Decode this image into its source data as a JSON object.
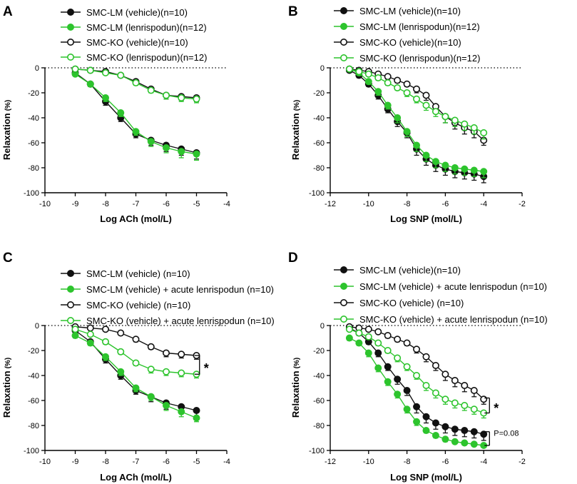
{
  "colors": {
    "black": "#111111",
    "green": "#2dc42d"
  },
  "chart_data": [
    {
      "id": "A",
      "type": "line",
      "letter": "A",
      "xlabel": "Log ACh (mol/L)",
      "ylabel": "Relaxation",
      "ylabel_unit": "(%)",
      "xlim": [
        -10,
        -4
      ],
      "ylim": [
        -100,
        0
      ],
      "xticks": [
        -10,
        -9,
        -8,
        -7,
        -6,
        -5,
        -4
      ],
      "xtick_labels": [
        "-10",
        "-9",
        "-8",
        "-7",
        "-6",
        "-5",
        "-4"
      ],
      "yticks": [
        0,
        -20,
        -40,
        -60,
        -80,
        -100
      ],
      "ytick_labels": [
        "0",
        "-20",
        "-40",
        "-60",
        "-80",
        "-100"
      ],
      "series": [
        {
          "name": "SMC-LM (vehicle)(n=10)",
          "color": "black",
          "filled": true,
          "x": [
            -9,
            -8.5,
            -8,
            -7.5,
            -7,
            -6.5,
            -6,
            -5.5,
            -5
          ],
          "y": [
            -4,
            -13,
            -27,
            -40,
            -53,
            -58,
            -62,
            -65,
            -68
          ],
          "err": [
            1,
            2,
            3,
            3,
            3,
            4,
            5,
            5,
            5
          ]
        },
        {
          "name": "SMC-LM (lenrispodun)(n=12)",
          "color": "green",
          "filled": true,
          "x": [
            -9,
            -8.5,
            -8,
            -7.5,
            -7,
            -6.5,
            -6,
            -5.5,
            -5
          ],
          "y": [
            -5,
            -13,
            -24,
            -36,
            -51,
            -59,
            -64,
            -67,
            -69
          ],
          "err": [
            1,
            2,
            3,
            3,
            3,
            4,
            4,
            5,
            5
          ]
        },
        {
          "name": "SMC-KO (vehicle)(n=10)",
          "color": "black",
          "filled": false,
          "x": [
            -9,
            -8.5,
            -8,
            -7.5,
            -7,
            -6.5,
            -6,
            -5.5,
            -5
          ],
          "y": [
            -1,
            -2,
            -3,
            -6,
            -11,
            -17,
            -22,
            -23,
            -24
          ],
          "err": [
            1,
            1,
            1,
            1,
            2,
            2,
            3,
            3,
            3
          ]
        },
        {
          "name": "SMC-KO (lenrispodun)(n=12)",
          "color": "green",
          "filled": false,
          "x": [
            -9,
            -8.5,
            -8,
            -7.5,
            -7,
            -6.5,
            -6,
            -5.5,
            -5
          ],
          "y": [
            -1,
            -2,
            -4,
            -6,
            -12,
            -18,
            -22,
            -24,
            -25
          ],
          "err": [
            1,
            1,
            1,
            1,
            2,
            2,
            3,
            3,
            3
          ]
        }
      ]
    },
    {
      "id": "B",
      "type": "line",
      "letter": "B",
      "xlabel": "Log SNP (mol/L)",
      "ylabel": "Relaxation",
      "ylabel_unit": "(%)",
      "xlim": [
        -12,
        -2
      ],
      "ylim": [
        -100,
        0
      ],
      "xticks": [
        -12,
        -10,
        -8,
        -6,
        -4,
        -2
      ],
      "xtick_labels": [
        "-12",
        "-10",
        "-8",
        "-6",
        "-4",
        "-2"
      ],
      "yticks": [
        0,
        -20,
        -40,
        -60,
        -80,
        -100
      ],
      "ytick_labels": [
        "0",
        "-20",
        "-40",
        "-60",
        "-80",
        "-100"
      ],
      "series": [
        {
          "name": "SMC-LM (vehicle)(n=10)",
          "color": "black",
          "filled": true,
          "x": [
            -11,
            -10.5,
            -10,
            -9.5,
            -9,
            -8.5,
            -8,
            -7.5,
            -7,
            -6.5,
            -6,
            -5.5,
            -5,
            -4.5,
            -4
          ],
          "y": [
            -2,
            -6,
            -13,
            -22,
            -33,
            -43,
            -52,
            -65,
            -73,
            -78,
            -81,
            -83,
            -84,
            -85,
            -87
          ],
          "err": [
            1,
            2,
            2,
            3,
            3,
            4,
            4,
            5,
            5,
            5,
            5,
            5,
            5,
            5,
            5
          ]
        },
        {
          "name": "SMC-LM (lenrispodun)(n=12)",
          "color": "green",
          "filled": true,
          "x": [
            -11,
            -10.5,
            -10,
            -9.5,
            -9,
            -8.5,
            -8,
            -7.5,
            -7,
            -6.5,
            -6,
            -5.5,
            -5,
            -4.5,
            -4
          ],
          "y": [
            -1,
            -4,
            -11,
            -19,
            -30,
            -40,
            -51,
            -62,
            -70,
            -75,
            -78,
            -80,
            -81,
            -82,
            -83
          ],
          "err": [
            1,
            2,
            2,
            3,
            3,
            4,
            4,
            5,
            5,
            5,
            5,
            5,
            5,
            5,
            5
          ]
        },
        {
          "name": "SMC-KO (vehicle)(n=10)",
          "color": "black",
          "filled": false,
          "x": [
            -11,
            -10.5,
            -10,
            -9.5,
            -9,
            -8.5,
            -8,
            -7.5,
            -7,
            -6.5,
            -6,
            -5.5,
            -5,
            -4.5,
            -4
          ],
          "y": [
            -1,
            -2,
            -3,
            -5,
            -7,
            -10,
            -13,
            -17,
            -22,
            -31,
            -39,
            -44,
            -48,
            -51,
            -58
          ],
          "err": [
            1,
            1,
            1,
            1,
            2,
            2,
            2,
            3,
            4,
            4,
            5,
            5,
            5,
            5,
            4
          ]
        },
        {
          "name": "SMC-KO (lenrispodun)(n=12)",
          "color": "green",
          "filled": false,
          "x": [
            -11,
            -10.5,
            -10,
            -9.5,
            -9,
            -8.5,
            -8,
            -7.5,
            -7,
            -6.5,
            -6,
            -5.5,
            -5,
            -4.5,
            -4
          ],
          "y": [
            -1,
            -3,
            -5,
            -8,
            -12,
            -16,
            -20,
            -25,
            -30,
            -35,
            -39,
            -42,
            -45,
            -48,
            -52
          ],
          "err": [
            1,
            1,
            1,
            2,
            2,
            2,
            3,
            3,
            4,
            4,
            5,
            5,
            5,
            5,
            5
          ]
        }
      ]
    },
    {
      "id": "C",
      "type": "line",
      "letter": "C",
      "xlabel": "Log ACh (mol/L)",
      "ylabel": "Relaxation",
      "ylabel_unit": "(%)",
      "xlim": [
        -10,
        -4
      ],
      "ylim": [
        -100,
        0
      ],
      "xticks": [
        -10,
        -9,
        -8,
        -7,
        -6,
        -5,
        -4
      ],
      "xtick_labels": [
        "-10",
        "-9",
        "-8",
        "-7",
        "-6",
        "-5",
        "-4"
      ],
      "yticks": [
        0,
        -20,
        -40,
        -60,
        -80,
        -100
      ],
      "ytick_labels": [
        "0",
        "-20",
        "-40",
        "-60",
        "-80",
        "-100"
      ],
      "annotations": [
        {
          "text": "*",
          "x": -4.9,
          "y": -32
        }
      ],
      "brackets": [
        {
          "x": -4.9,
          "y1": -24,
          "y2": -39
        }
      ],
      "series": [
        {
          "name": "SMC-LM (vehicle) (n=10)",
          "color": "black",
          "filled": true,
          "x": [
            -9,
            -8.5,
            -8,
            -7.5,
            -7,
            -6.5,
            -6,
            -5.5,
            -5
          ],
          "y": [
            -4,
            -13,
            -27,
            -40,
            -52,
            -57,
            -62,
            -65,
            -68
          ],
          "err": [
            1,
            2,
            3,
            3,
            3,
            4,
            5,
            5,
            5
          ]
        },
        {
          "name": "SMC-LM (vehicle) + acute lenrispodun (n=10)",
          "color": "green",
          "filled": true,
          "x": [
            -9,
            -8.5,
            -8,
            -7.5,
            -7,
            -6.5,
            -6,
            -5.5,
            -5
          ],
          "y": [
            -8,
            -14,
            -25,
            -37,
            -50,
            -57,
            -64,
            -69,
            -74
          ],
          "err": [
            2,
            2,
            3,
            3,
            3,
            3,
            4,
            4,
            3
          ]
        },
        {
          "name": "SMC-KO (vehicle) (n=10)",
          "color": "black",
          "filled": false,
          "x": [
            -9,
            -8.5,
            -8,
            -7.5,
            -7,
            -6.5,
            -6,
            -5.5,
            -5
          ],
          "y": [
            -1,
            -2,
            -3,
            -6,
            -11,
            -17,
            -22,
            -23,
            -24
          ],
          "err": [
            1,
            1,
            1,
            1,
            2,
            2,
            3,
            3,
            3
          ]
        },
        {
          "name": "SMC-KO (vehicle) + acute lenrispodun (n=10)",
          "color": "green",
          "filled": false,
          "x": [
            -9,
            -8.5,
            -8,
            -7.5,
            -7,
            -6.5,
            -6,
            -5.5,
            -5
          ],
          "y": [
            -3,
            -7,
            -13,
            -21,
            -30,
            -35,
            -37,
            -38,
            -39
          ],
          "err": [
            1,
            1,
            2,
            2,
            2,
            3,
            3,
            3,
            3
          ]
        }
      ]
    },
    {
      "id": "D",
      "type": "line",
      "letter": "D",
      "xlabel": "Log SNP (mol/L)",
      "ylabel": "Relaxation",
      "ylabel_unit": "(%)",
      "xlim": [
        -12,
        -2
      ],
      "ylim": [
        -100,
        0
      ],
      "xticks": [
        -12,
        -10,
        -8,
        -6,
        -4,
        -2
      ],
      "xtick_labels": [
        "-12",
        "-10",
        "-8",
        "-6",
        "-4",
        "-2"
      ],
      "yticks": [
        0,
        -20,
        -40,
        -60,
        -80,
        -100
      ],
      "ytick_labels": [
        "0",
        "-20",
        "-40",
        "-60",
        "-80",
        "-100"
      ],
      "annotations": [
        {
          "text": "*",
          "x": -3.7,
          "y": -64
        },
        {
          "text": "P=0.08",
          "x": -3.7,
          "y": -86
        }
      ],
      "brackets": [
        {
          "x": -3.7,
          "y1": -58,
          "y2": -70
        },
        {
          "x": -3.7,
          "y1": -85,
          "y2": -96
        }
      ],
      "series": [
        {
          "name": "SMC-LM (vehicle)(n=10)",
          "color": "black",
          "filled": true,
          "x": [
            -11,
            -10.5,
            -10,
            -9.5,
            -9,
            -8.5,
            -8,
            -7.5,
            -7,
            -6.5,
            -6,
            -5.5,
            -5,
            -4.5,
            -4
          ],
          "y": [
            -2,
            -6,
            -13,
            -22,
            -33,
            -43,
            -52,
            -65,
            -73,
            -78,
            -81,
            -83,
            -84,
            -85,
            -87
          ],
          "err": [
            1,
            2,
            2,
            3,
            3,
            4,
            4,
            5,
            5,
            5,
            5,
            5,
            5,
            5,
            5
          ]
        },
        {
          "name": "SMC-LM (vehicle) + acute lenrispodun (n=10)",
          "color": "green",
          "filled": true,
          "x": [
            -11,
            -10.5,
            -10,
            -9.5,
            -9,
            -8.5,
            -8,
            -7.5,
            -7,
            -6.5,
            -6,
            -5.5,
            -5,
            -4.5,
            -4
          ],
          "y": [
            -10,
            -14,
            -22,
            -34,
            -45,
            -55,
            -67,
            -77,
            -84,
            -88,
            -91,
            -93,
            -94,
            -95,
            -96
          ],
          "err": [
            2,
            2,
            3,
            3,
            3,
            3,
            3,
            3,
            2,
            2,
            2,
            1,
            1,
            1,
            1
          ]
        },
        {
          "name": "SMC-KO (vehicle) (n=10)",
          "color": "black",
          "filled": false,
          "x": [
            -11,
            -10.5,
            -10,
            -9.5,
            -9,
            -8.5,
            -8,
            -7.5,
            -7,
            -6.5,
            -6,
            -5.5,
            -5,
            -4.5,
            -4
          ],
          "y": [
            -1,
            -2,
            -3,
            -5,
            -8,
            -11,
            -14,
            -19,
            -25,
            -32,
            -39,
            -44,
            -48,
            -52,
            -59
          ],
          "err": [
            1,
            1,
            1,
            1,
            2,
            2,
            2,
            3,
            4,
            4,
            5,
            5,
            5,
            5,
            4
          ]
        },
        {
          "name": "SMC-KO (vehicle) + acute lenrispodun (n=10)",
          "color": "green",
          "filled": false,
          "x": [
            -11,
            -10.5,
            -10,
            -9.5,
            -9,
            -8.5,
            -8,
            -7.5,
            -7,
            -6.5,
            -6,
            -5.5,
            -5,
            -4.5,
            -4
          ],
          "y": [
            -3,
            -6,
            -9,
            -14,
            -20,
            -26,
            -33,
            -40,
            -48,
            -54,
            -59,
            -62,
            -64,
            -67,
            -70
          ],
          "err": [
            1,
            1,
            2,
            2,
            2,
            3,
            3,
            3,
            4,
            4,
            4,
            4,
            4,
            4,
            4
          ]
        }
      ]
    }
  ]
}
